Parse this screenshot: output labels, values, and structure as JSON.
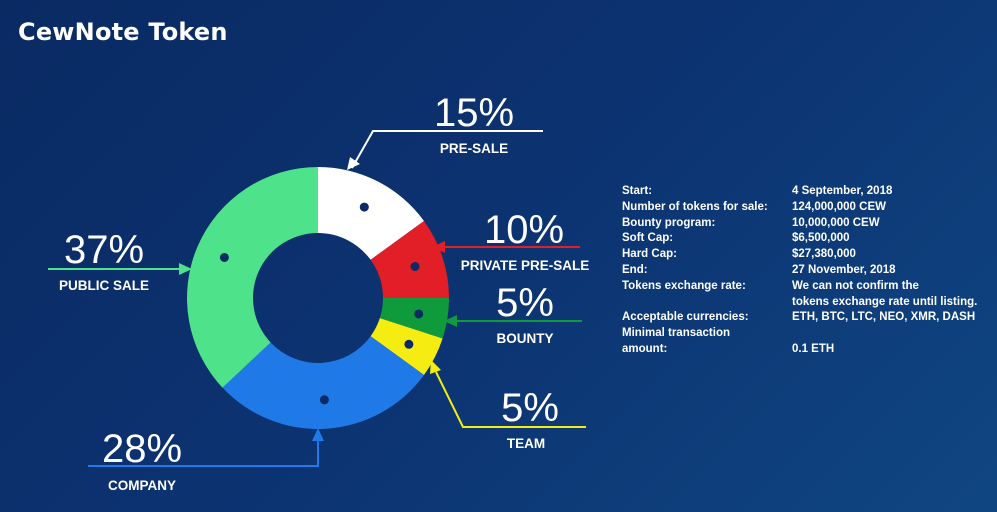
{
  "title": "CewNote Token",
  "chart_data": {
    "type": "pie",
    "slices": [
      {
        "name": "PRE-SALE",
        "pct_label": "15%",
        "value": 15,
        "color": "#ffffff"
      },
      {
        "name": "PRIVATE PRE-SALE",
        "pct_label": "10%",
        "value": 10,
        "color": "#e21e26"
      },
      {
        "name": "BOUNTY",
        "pct_label": "5%",
        "value": 5,
        "color": "#0f9a3c"
      },
      {
        "name": "TEAM",
        "pct_label": "5%",
        "value": 5,
        "color": "#f5ec12"
      },
      {
        "name": "COMPANY",
        "pct_label": "28%",
        "value": 28,
        "color": "#1f7ae8"
      },
      {
        "name": "PUBLIC SALE",
        "pct_label": "37%",
        "value": 37,
        "color": "#4ee38a"
      }
    ],
    "leader_colors": {
      "PRE-SALE": "#ffffff",
      "PRIVATE PRE-SALE": "#e21e26",
      "BOUNTY": "#0f9a3c",
      "TEAM": "#f5ec12",
      "COMPANY": "#1f7ae8",
      "PUBLIC SALE": "#4ee38a"
    },
    "dot_color": "#0c2a66"
  },
  "info": [
    {
      "key": "Start:",
      "value": "4 September, 2018"
    },
    {
      "key": "Number of tokens for sale:",
      "value": "124,000,000 CEW"
    },
    {
      "key": "Bounty program:",
      "value": "10,000,000 CEW"
    },
    {
      "key": "Soft Cap:",
      "value": "$6,500,000"
    },
    {
      "key": "Hard Cap:",
      "value": "$27,380,000"
    },
    {
      "key": "End:",
      "value": "27 November, 2018"
    },
    {
      "key": "Tokens exchange rate:",
      "value": "We can not confirm the tokens exchange rate until listing."
    },
    {
      "key": "Acceptable currencies:",
      "value": "ETH, BTC, LTC, NEO, XMR, DASH"
    },
    {
      "key": "Minimal transaction amount:",
      "value": "0.1 ETH"
    }
  ]
}
